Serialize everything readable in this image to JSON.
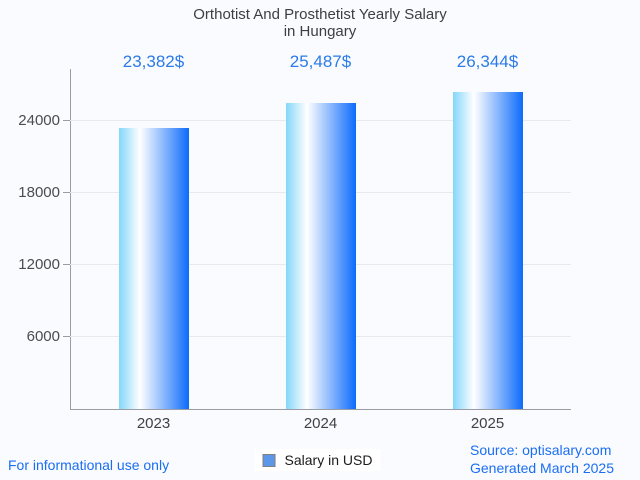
{
  "title": {
    "line1": "Orthotist And Prosthetist Yearly Salary",
    "line2": "in Hungary"
  },
  "chart_data": {
    "type": "bar",
    "title": "Orthotist And Prosthetist Yearly Salary in Hungary",
    "categories": [
      "2023",
      "2024",
      "2025"
    ],
    "values": [
      23382,
      25487,
      26344
    ],
    "value_labels": [
      "23,382$",
      "25,487$",
      "26,344$"
    ],
    "series_name": "Salary in USD",
    "xlabel": "",
    "ylabel": "",
    "yticks": [
      6000,
      12000,
      18000,
      24000
    ],
    "ylim": [
      0,
      28300
    ],
    "grid": true,
    "legend": {
      "label": "Salary in USD",
      "position": "bottom"
    },
    "bar_gradient": [
      "#84d6fa",
      "#ffffff",
      "#0d6bfb"
    ],
    "bar_gradient_white_stop_pct": 30,
    "value_label_color": "#2b7be8"
  },
  "footer": {
    "disclaimer": "For informational use only",
    "source_line1": "Source: optisalary.com",
    "source_line2": "Generated March 2025"
  },
  "colors": {
    "background": "#fafbfe",
    "title_text": "#3c4043",
    "axis": "#9a9da3",
    "gridline": "#e8e9ec",
    "tick_label": "#4a4c50",
    "link_blue": "#1a6ef3",
    "legend_marker_fill": "#5e96e8",
    "legend_marker_border": "#808080"
  }
}
